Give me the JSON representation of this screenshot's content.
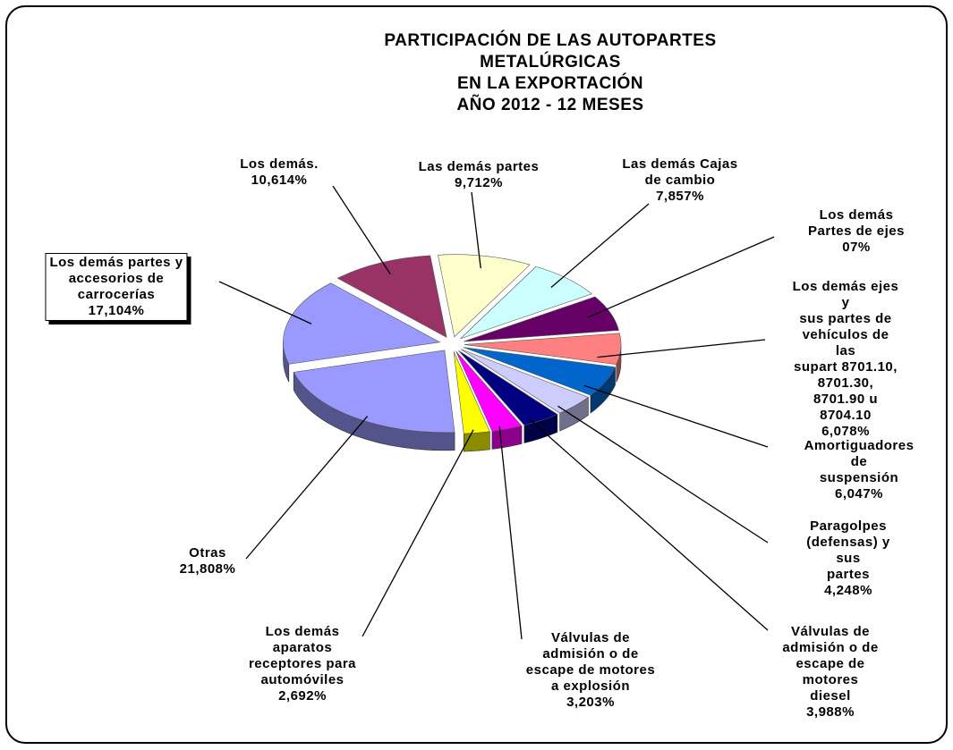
{
  "chart_data": {
    "type": "pie",
    "title": "PARTICIPACIÓN DE LAS AUTOPARTES METALÚRGICAS\nEN LA EXPORTACIÓN\nAÑO 2012  -  12 MESES",
    "categories": [
      "Las demás partes",
      "Las demás Cajas\nde cambio",
      "Los demás\nPartes de ejes",
      "Los demás ejes y\nsus partes de\nvehículos de las\nsupart 8701.10,\n8701.30, 8701.90 u\n8704.10",
      "Amortiguadores de\nsuspensión",
      "Paragolpes\n(defensas) y sus\npartes",
      "Válvulas de\nadmisión o de\nescape de motores\ndiesel",
      "Válvulas de\nadmisión o de\nescape de motores\na explosión",
      "Los demás\naparatos\nreceptores para\nautomóviles",
      "Otras",
      "Los demás partes y\naccesorios de\ncarrocerías",
      "Los demás."
    ],
    "values": [
      9.712,
      7.857,
      7,
      6.078,
      6.047,
      4.248,
      3.988,
      3.203,
      2.692,
      21.808,
      17.104,
      10.614
    ],
    "value_labels": [
      "9,712%",
      "7,857%",
      "07%",
      "6,078%",
      "6,047%",
      "4,248%",
      "3,988%",
      "3,203%",
      "2,692%",
      "21,808%",
      "17,104%",
      "10,614%"
    ],
    "colors": [
      "#FFFFCC",
      "#CCFFFF",
      "#660066",
      "#FF8080",
      "#0066CC",
      "#CCCCFF",
      "#000080",
      "#FF00FF",
      "#FFFF00",
      "#9999FF",
      "#9999FF",
      "#993366"
    ]
  }
}
